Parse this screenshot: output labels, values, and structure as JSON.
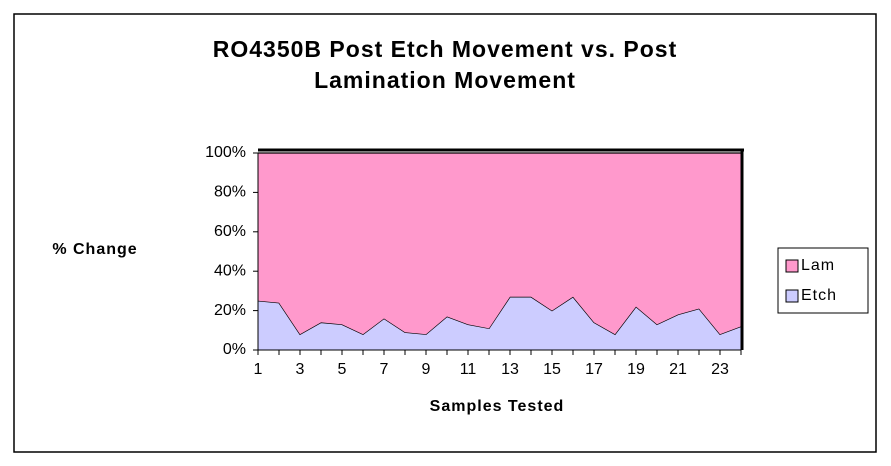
{
  "chart_data": {
    "type": "stacked_area_100",
    "title": "RO4350B Post Etch Movement vs. Post Lamination Movement",
    "x_label": "Samples Tested",
    "y_label": "% Change",
    "categories": [
      1,
      null,
      3,
      null,
      5,
      null,
      7,
      null,
      9,
      null,
      11,
      null,
      13,
      null,
      15,
      null,
      17,
      null,
      19,
      null,
      21,
      null,
      23,
      null
    ],
    "series": [
      {
        "name": "Lam",
        "color": "#ff99cc",
        "values": [
          75,
          76,
          92,
          86,
          87,
          92,
          84,
          91,
          92,
          83,
          87,
          89,
          73,
          73,
          80,
          73,
          86,
          92,
          78,
          87,
          82,
          79,
          92,
          88
        ]
      },
      {
        "name": "Etch",
        "color": "#ccccff",
        "values": [
          25,
          24,
          8,
          14,
          13,
          8,
          16,
          9,
          8,
          17,
          13,
          11,
          27,
          27,
          20,
          27,
          14,
          8,
          22,
          13,
          18,
          21,
          8,
          12
        ]
      }
    ],
    "ylim": [
      0,
      100
    ],
    "yticks": [
      {
        "value": 0,
        "label": "0%"
      },
      {
        "value": 20,
        "label": "20%"
      },
      {
        "value": 40,
        "label": "40%"
      },
      {
        "value": 60,
        "label": "60%"
      },
      {
        "value": 80,
        "label": "80%"
      },
      {
        "value": 100,
        "label": "100%"
      }
    ],
    "legend": "right"
  }
}
